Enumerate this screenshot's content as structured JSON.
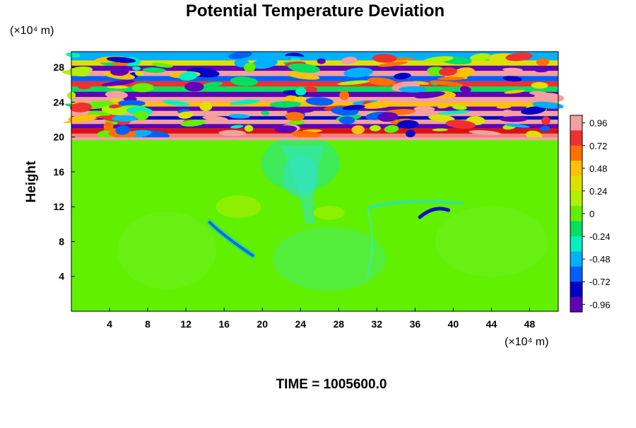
{
  "chart_data": {
    "type": "heatmap",
    "title": "Potential Temperature Deviation",
    "ylabel": "Height",
    "y_unit": "(×10⁴ m)",
    "x_unit": "(×10⁴ m)",
    "xlim": [
      0,
      51
    ],
    "ylim": [
      0,
      29.8
    ],
    "x_ticks": [
      "4",
      "8",
      "12",
      "16",
      "20",
      "24",
      "28",
      "32",
      "36",
      "40",
      "44",
      "48"
    ],
    "y_ticks": [
      "4",
      "8",
      "12",
      "16",
      "20",
      "24",
      "28"
    ],
    "colorbar": {
      "range": [
        -1.04,
        1.04
      ],
      "labels": [
        "0.96",
        "0.72",
        "0.48",
        "0.24",
        "0",
        "-0.24",
        "-0.48",
        "-0.72",
        "-0.96"
      ],
      "colors": [
        "#F5A0A0",
        "#F03030",
        "#FF7000",
        "#FFC000",
        "#E0E000",
        "#B0F000",
        "#60F000",
        "#00E060",
        "#00F0C0",
        "#00B0FF",
        "#0060FF",
        "#0000C8",
        "#6000B8"
      ]
    },
    "stratosphere_base": 19.8,
    "background_value": -0.05,
    "features": [
      {
        "kind": "plume",
        "x": 24,
        "y": 11,
        "value": -0.3
      },
      {
        "kind": "warm-patch",
        "x": 17.5,
        "y": 12,
        "value": 0.2
      },
      {
        "kind": "cold-filament",
        "x": 16,
        "y": 8,
        "value": -0.9
      },
      {
        "kind": "cold-filament",
        "x": 38,
        "y": 11.3,
        "value": -0.9
      }
    ],
    "footer": "TIME = 1005600.0"
  }
}
